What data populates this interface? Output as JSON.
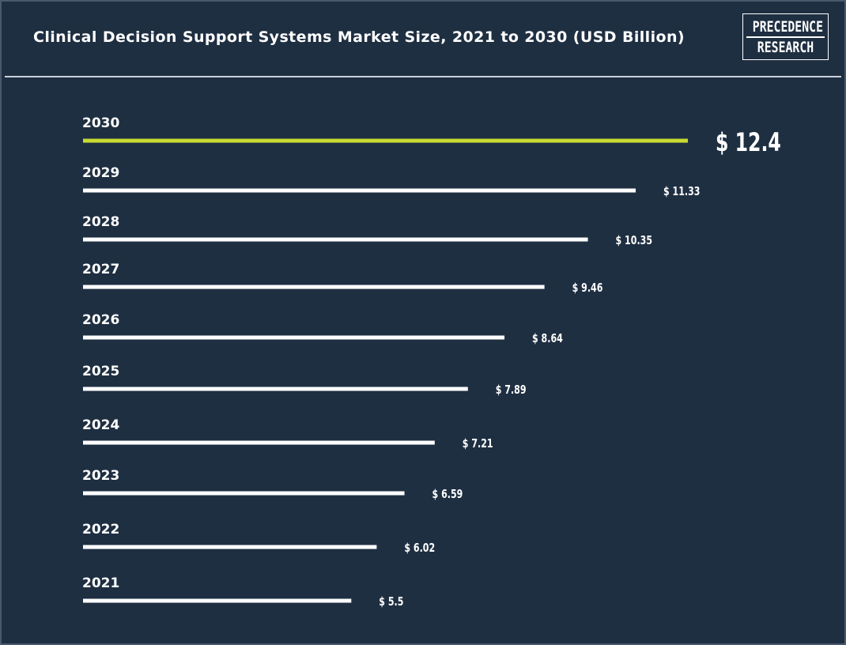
{
  "header": {
    "title": "Clinical Decision Support Systems Market Size, 2021 to 2030 (USD Billion)",
    "logo_line1": "PRECEDENCE",
    "logo_line2": "RESEARCH"
  },
  "colors": {
    "background": "#1f2f42",
    "bar": "#ffffff",
    "highlight": "#c8dc32"
  },
  "chart_data": {
    "type": "bar",
    "orientation": "horizontal",
    "title": "Clinical Decision Support Systems Market Size, 2021 to 2030 (USD Billion)",
    "categories": [
      "2030",
      "2029",
      "2028",
      "2027",
      "2026",
      "2025",
      "2024",
      "2023",
      "2022",
      "2021"
    ],
    "values": [
      12.4,
      11.33,
      10.35,
      9.46,
      8.64,
      7.89,
      7.21,
      6.59,
      6.02,
      5.5
    ],
    "value_labels": [
      "$ 12.4",
      "$ 11.33",
      "$ 10.35",
      "$ 9.46",
      "$ 8.64",
      "$ 7.89",
      "$ 7.21",
      "$ 6.59",
      "$ 6.02",
      "$ 5.5"
    ],
    "highlighted_category": "2030",
    "grid": false,
    "legend": "none"
  }
}
